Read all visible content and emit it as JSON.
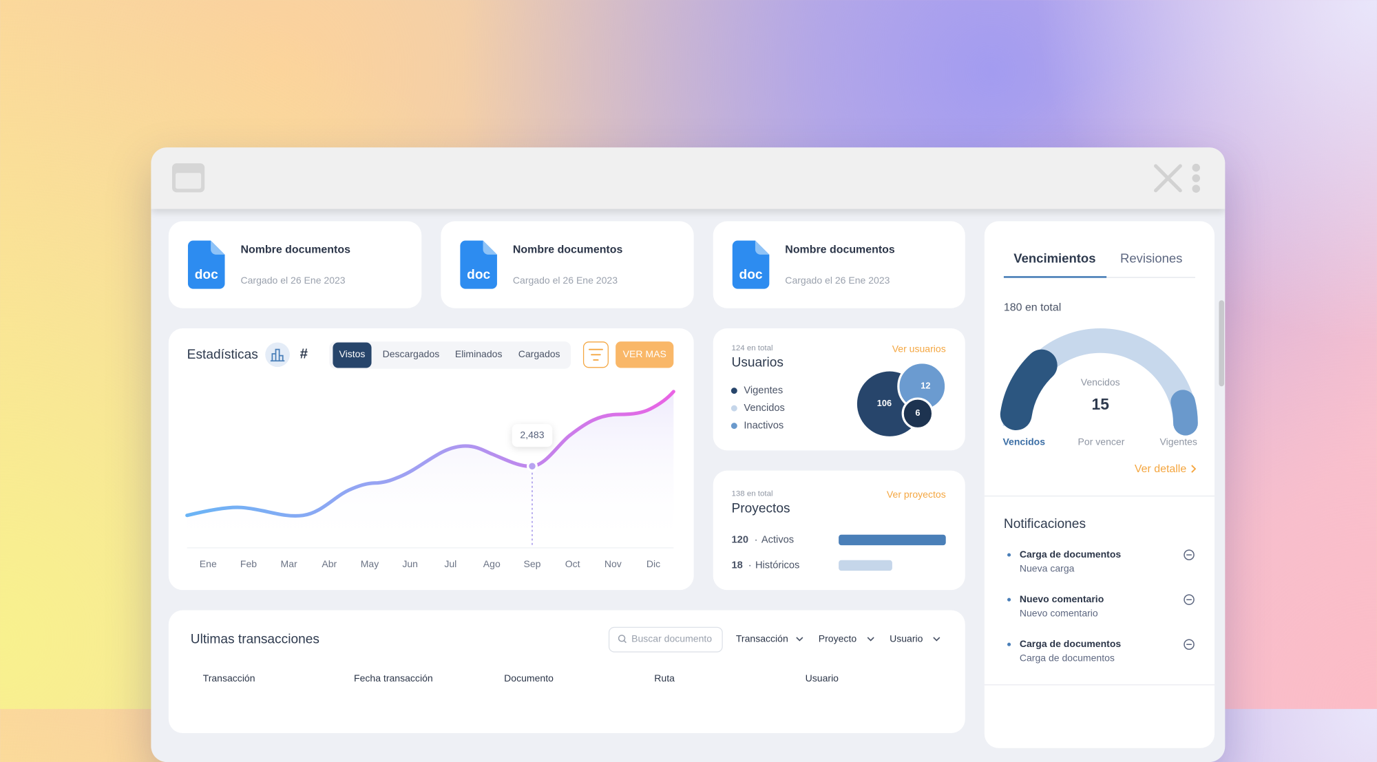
{
  "documents": [
    {
      "icon_label": "doc",
      "name": "Nombre documentos",
      "uploaded": "Cargado el 26 Ene 2023"
    },
    {
      "icon_label": "doc",
      "name": "Nombre documentos",
      "uploaded": "Cargado el 26 Ene 2023"
    },
    {
      "icon_label": "doc",
      "name": "Nombre documentos",
      "uploaded": "Cargado el 26 Ene 2023"
    }
  ],
  "statistics": {
    "title": "Estadísticas",
    "hash": "#",
    "tabs": [
      "Vistos",
      "Descargados",
      "Eliminados",
      "Cargados"
    ],
    "active_tab": 0,
    "button": "VER MAS",
    "months": [
      "Ene",
      "Feb",
      "Mar",
      "Abr",
      "May",
      "Jun",
      "Jul",
      "Ago",
      "Sep",
      "Oct",
      "Nov",
      "Dic"
    ],
    "tooltip": "2,483"
  },
  "users": {
    "total": "124 en total",
    "title": "Usuarios",
    "link": "Ver usuarios",
    "legend": [
      "Vigentes",
      "Vencidos",
      "Inactivos"
    ],
    "bubbles": [
      "106",
      "12",
      "6"
    ]
  },
  "projects": {
    "total": "138 en total",
    "title": "Proyectos",
    "link": "Ver proyectos",
    "rows": [
      {
        "count": "120",
        "label": "Activos"
      },
      {
        "count": "18",
        "label": "Históricos"
      }
    ]
  },
  "expirations": {
    "tabs": [
      "Vencimientos",
      "Revisiones"
    ],
    "total": "180 en total",
    "center_label": "Vencidos",
    "center_value": "15",
    "segments": [
      "Vencidos",
      "Por vencer",
      "Vigentes"
    ],
    "link": "Ver detalle"
  },
  "notifications": {
    "title": "Notificaciones",
    "items": [
      {
        "title": "Carga de documentos",
        "subtitle": "Nueva carga"
      },
      {
        "title": "Nuevo comentario",
        "subtitle": "Nuevo comentario"
      },
      {
        "title": "Carga de documentos",
        "subtitle": "Carga de documentos"
      }
    ]
  },
  "transactions": {
    "title": "Ultimas transacciones",
    "search": "Buscar documento",
    "filters": [
      "Transacción",
      "Proyecto",
      "Usuario"
    ],
    "columns": [
      "Transacción",
      "Fecha transacción",
      "Documento",
      "Ruta",
      "Usuario"
    ]
  }
}
